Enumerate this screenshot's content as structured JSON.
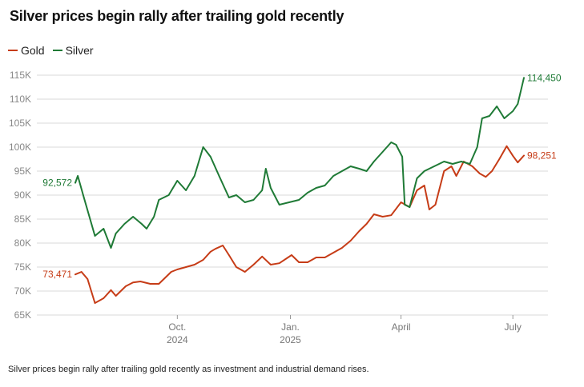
{
  "title": "Silver prices begin rally after trailing gold recently",
  "caption": "Silver prices begin rally after trailing gold recently as investment and industrial demand rises.",
  "legend": [
    {
      "name": "Gold",
      "color": "#c63c17"
    },
    {
      "name": "Silver",
      "color": "#1f7a36"
    }
  ],
  "chart_data": {
    "type": "line",
    "x_ticks": [
      {
        "label": "Oct.",
        "sublabel": "2024",
        "date": "2024-10-01"
      },
      {
        "label": "Jan.",
        "sublabel": "2025",
        "date": "2025-01-01"
      },
      {
        "label": "April",
        "sublabel": "",
        "date": "2025-04-01"
      },
      {
        "label": "July",
        "sublabel": "",
        "date": "2025-07-01"
      }
    ],
    "xlim": [
      "2024-07-10",
      "2025-07-10"
    ],
    "ylim": [
      65000,
      115000
    ],
    "y_ticks": [
      65000,
      70000,
      75000,
      80000,
      85000,
      90000,
      95000,
      100000,
      105000,
      110000,
      115000
    ],
    "y_tick_labels": [
      "65K",
      "70K",
      "75K",
      "80K",
      "85K",
      "90K",
      "95K",
      "100K",
      "105K",
      "110K",
      "115K"
    ],
    "grid": true,
    "legend_position": "top-left",
    "series": [
      {
        "name": "Gold",
        "color": "#c63c17",
        "start_label": "73,471",
        "end_label": "98,251",
        "points": [
          [
            "2024-07-10",
            73471
          ],
          [
            "2024-07-15",
            74000
          ],
          [
            "2024-07-20",
            72500
          ],
          [
            "2024-07-26",
            67500
          ],
          [
            "2024-08-02",
            68500
          ],
          [
            "2024-08-08",
            70200
          ],
          [
            "2024-08-12",
            69000
          ],
          [
            "2024-08-20",
            71000
          ],
          [
            "2024-08-26",
            71800
          ],
          [
            "2024-09-01",
            72000
          ],
          [
            "2024-09-09",
            71500
          ],
          [
            "2024-09-16",
            71500
          ],
          [
            "2024-09-20",
            72500
          ],
          [
            "2024-09-26",
            74000
          ],
          [
            "2024-10-01",
            74500
          ],
          [
            "2024-10-08",
            75000
          ],
          [
            "2024-10-15",
            75500
          ],
          [
            "2024-10-22",
            76500
          ],
          [
            "2024-10-28",
            78200
          ],
          [
            "2024-11-01",
            78800
          ],
          [
            "2024-11-07",
            79500
          ],
          [
            "2024-11-12",
            77500
          ],
          [
            "2024-11-18",
            75000
          ],
          [
            "2024-11-25",
            74000
          ],
          [
            "2024-12-02",
            75500
          ],
          [
            "2024-12-09",
            77200
          ],
          [
            "2024-12-16",
            75500
          ],
          [
            "2024-12-23",
            75800
          ],
          [
            "2025-01-02",
            77500
          ],
          [
            "2025-01-08",
            76000
          ],
          [
            "2025-01-15",
            76000
          ],
          [
            "2025-01-22",
            77000
          ],
          [
            "2025-01-29",
            77000
          ],
          [
            "2025-02-05",
            78000
          ],
          [
            "2025-02-12",
            79000
          ],
          [
            "2025-02-19",
            80500
          ],
          [
            "2025-02-26",
            82500
          ],
          [
            "2025-03-04",
            84000
          ],
          [
            "2025-03-10",
            86000
          ],
          [
            "2025-03-17",
            85500
          ],
          [
            "2025-03-24",
            85800
          ],
          [
            "2025-04-01",
            88500
          ],
          [
            "2025-04-08",
            87500
          ],
          [
            "2025-04-14",
            91000
          ],
          [
            "2025-04-20",
            92000
          ],
          [
            "2025-04-24",
            87000
          ],
          [
            "2025-04-29",
            88000
          ],
          [
            "2025-05-06",
            95000
          ],
          [
            "2025-05-12",
            96000
          ],
          [
            "2025-05-16",
            94000
          ],
          [
            "2025-05-22",
            97000
          ],
          [
            "2025-05-29",
            96000
          ],
          [
            "2025-06-04",
            94500
          ],
          [
            "2025-06-09",
            93800
          ],
          [
            "2025-06-14",
            95000
          ],
          [
            "2025-06-20",
            97500
          ],
          [
            "2025-06-26",
            100200
          ],
          [
            "2025-07-01",
            98200
          ],
          [
            "2025-07-05",
            96800
          ],
          [
            "2025-07-10",
            98251
          ]
        ]
      },
      {
        "name": "Silver",
        "color": "#1f7a36",
        "start_label": "92,572",
        "end_label": "114,450",
        "points": [
          [
            "2024-07-10",
            92572
          ],
          [
            "2024-07-12",
            94000
          ],
          [
            "2024-07-17",
            89500
          ],
          [
            "2024-07-26",
            81500
          ],
          [
            "2024-08-02",
            83000
          ],
          [
            "2024-08-08",
            79000
          ],
          [
            "2024-08-12",
            82000
          ],
          [
            "2024-08-19",
            84000
          ],
          [
            "2024-08-26",
            85500
          ],
          [
            "2024-09-02",
            84000
          ],
          [
            "2024-09-06",
            83000
          ],
          [
            "2024-09-12",
            85500
          ],
          [
            "2024-09-16",
            89000
          ],
          [
            "2024-09-24",
            90000
          ],
          [
            "2024-10-01",
            93000
          ],
          [
            "2024-10-08",
            91000
          ],
          [
            "2024-10-15",
            94000
          ],
          [
            "2024-10-22",
            100000
          ],
          [
            "2024-10-28",
            98000
          ],
          [
            "2024-11-04",
            94000
          ],
          [
            "2024-11-12",
            89500
          ],
          [
            "2024-11-18",
            90000
          ],
          [
            "2024-11-25",
            88500
          ],
          [
            "2024-12-02",
            89000
          ],
          [
            "2024-12-09",
            91000
          ],
          [
            "2024-12-12",
            95500
          ],
          [
            "2024-12-16",
            91500
          ],
          [
            "2024-12-23",
            88000
          ],
          [
            "2024-12-31",
            88500
          ],
          [
            "2025-01-08",
            89000
          ],
          [
            "2025-01-15",
            90500
          ],
          [
            "2025-01-22",
            91500
          ],
          [
            "2025-01-29",
            92000
          ],
          [
            "2025-02-05",
            94000
          ],
          [
            "2025-02-12",
            95000
          ],
          [
            "2025-02-19",
            96000
          ],
          [
            "2025-02-26",
            95500
          ],
          [
            "2025-03-04",
            95000
          ],
          [
            "2025-03-10",
            97000
          ],
          [
            "2025-03-17",
            99000
          ],
          [
            "2025-03-24",
            101000
          ],
          [
            "2025-03-28",
            100500
          ],
          [
            "2025-04-02",
            98000
          ],
          [
            "2025-04-04",
            88000
          ],
          [
            "2025-04-08",
            87500
          ],
          [
            "2025-04-14",
            93500
          ],
          [
            "2025-04-20",
            95000
          ],
          [
            "2025-04-28",
            96000
          ],
          [
            "2025-05-06",
            97000
          ],
          [
            "2025-05-13",
            96500
          ],
          [
            "2025-05-20",
            97000
          ],
          [
            "2025-05-27",
            96500
          ],
          [
            "2025-06-02",
            100000
          ],
          [
            "2025-06-06",
            106000
          ],
          [
            "2025-06-12",
            106500
          ],
          [
            "2025-06-18",
            108500
          ],
          [
            "2025-06-24",
            106000
          ],
          [
            "2025-07-01",
            107500
          ],
          [
            "2025-07-05",
            109000
          ],
          [
            "2025-07-10",
            114450
          ]
        ]
      }
    ]
  }
}
